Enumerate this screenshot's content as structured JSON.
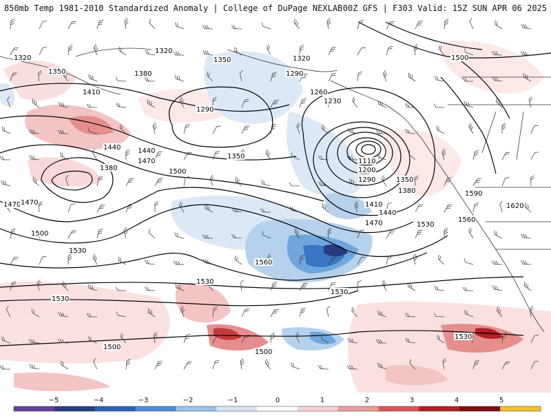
{
  "header": {
    "left_title": "850mb Temp 1981-2010 Standardized Anomaly | College of DuPage NEXLAB",
    "right_title": "00Z GFS | F303 Valid: 15Z SUN APR 06 2025"
  },
  "map": {
    "field": "850mb temperature standardized anomaly (shaded) with geopotential height contours and wind barbs",
    "contour_labels": [
      "1320",
      "1320",
      "1350",
      "1350",
      "1380",
      "1410",
      "1440",
      "1470",
      "1470",
      "1500",
      "1380",
      "1290",
      "1350",
      "1320",
      "1290",
      "1260",
      "1230",
      "1110",
      "1200",
      "1290",
      "1350",
      "1380",
      "1410",
      "1440",
      "1470",
      "1500",
      "1530",
      "1560",
      "1530",
      "1530",
      "1530",
      "1530",
      "1500",
      "1500",
      "1530",
      "1440",
      "1470",
      "1500",
      "1590",
      "1620",
      "1560"
    ],
    "low_center_value": "1110"
  },
  "colorbar": {
    "tick_labels": [
      "−5",
      "−4",
      "−3",
      "−2",
      "−1",
      "0",
      "1",
      "2",
      "3",
      "4",
      "5"
    ],
    "colors": [
      "#6a3f9e",
      "#283b7e",
      "#2f61b3",
      "#4f8fd4",
      "#9cc2e8",
      "#d6e4f3",
      "#ffffff",
      "#f6d3d3",
      "#ea9c9c",
      "#d95757",
      "#b21f24",
      "#7e0d12",
      "#f2c12e"
    ]
  }
}
